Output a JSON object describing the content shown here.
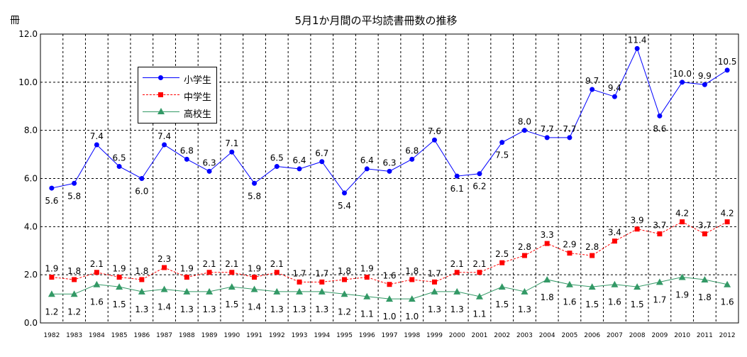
{
  "chart_data": {
    "type": "line",
    "title": "5月1か月間の平均読書冊数の推移",
    "ylabel": "冊",
    "xlabel": "",
    "ylim": [
      0,
      12
    ],
    "yticks": [
      "0.0",
      "2.0",
      "4.0",
      "6.0",
      "8.0",
      "10.0",
      "12.0"
    ],
    "grid": true,
    "legend_position": "upper-left",
    "categories": [
      "1982",
      "1983",
      "1984",
      "1985",
      "1986",
      "1987",
      "1988",
      "1989",
      "1990",
      "1991",
      "1992",
      "1993",
      "1994",
      "1995",
      "1996",
      "1997",
      "1998",
      "1999",
      "2000",
      "2001",
      "2002",
      "2003",
      "2004",
      "2005",
      "2006",
      "2007",
      "2008",
      "2009",
      "2010",
      "2011",
      "2012"
    ],
    "series": [
      {
        "name": "小学生",
        "color": "#0000ff",
        "marker": "circle",
        "line": "solid",
        "values": [
          5.6,
          5.8,
          7.4,
          6.5,
          6.0,
          7.4,
          6.8,
          6.3,
          7.1,
          5.8,
          6.5,
          6.4,
          6.7,
          5.4,
          6.4,
          6.3,
          6.8,
          7.6,
          6.1,
          6.2,
          7.5,
          8.0,
          7.7,
          7.7,
          9.7,
          9.4,
          11.4,
          8.6,
          10.0,
          9.9,
          10.5
        ],
        "labels": [
          "5.6",
          "5.8",
          "7.4",
          "6.5",
          "6.0",
          "7.4",
          "6.8",
          "6.3",
          "7.1",
          "5.8",
          "6.5",
          "6.4",
          "6.7",
          "5.4",
          "6.4",
          "6.3",
          "6.8",
          "7.6",
          "6.1",
          "6.2",
          "7.5",
          "8.0",
          "7.7",
          "7.7",
          "9.7",
          "9.4",
          "11.4",
          "8.6",
          "10.0",
          "9.9",
          "10.5"
        ],
        "label_side": [
          "below",
          "below",
          "above",
          "above",
          "below",
          "above",
          "above",
          "above",
          "above",
          "below",
          "above",
          "above",
          "above",
          "below",
          "above",
          "above",
          "above",
          "above",
          "below",
          "below",
          "below",
          "above",
          "above",
          "above",
          "above",
          "above",
          "above",
          "below",
          "above",
          "above",
          "above"
        ]
      },
      {
        "name": "中学生",
        "color": "#ff0000",
        "marker": "square",
        "line": "dashed",
        "values": [
          1.9,
          1.8,
          2.1,
          1.9,
          1.8,
          2.3,
          1.9,
          2.1,
          2.1,
          1.9,
          2.1,
          1.7,
          1.7,
          1.8,
          1.9,
          1.6,
          1.8,
          1.7,
          2.1,
          2.1,
          2.5,
          2.8,
          3.3,
          2.9,
          2.8,
          3.4,
          3.9,
          3.7,
          4.2,
          3.7,
          4.2
        ],
        "labels": [
          "1.9",
          "1.8",
          "2.1",
          "1.9",
          "1.8",
          "2.3",
          "1.9",
          "2.1",
          "2.1",
          "1.9",
          "2.1",
          "1.7",
          "1.7",
          "1.8",
          "1.9",
          "1.6",
          "1.8",
          "1.7",
          "2.1",
          "2.1",
          "2.5",
          "2.8",
          "3.3",
          "2.9",
          "2.8",
          "3.4",
          "3.9",
          "3.7",
          "4.2",
          "3.7",
          "4.2"
        ]
      },
      {
        "name": "高校生",
        "color": "#339966",
        "marker": "triangle",
        "line": "solid",
        "values": [
          1.2,
          1.2,
          1.6,
          1.5,
          1.3,
          1.4,
          1.3,
          1.3,
          1.5,
          1.4,
          1.3,
          1.3,
          1.3,
          1.2,
          1.1,
          1.0,
          1.0,
          1.3,
          1.3,
          1.1,
          1.5,
          1.3,
          1.8,
          1.6,
          1.5,
          1.6,
          1.5,
          1.7,
          1.9,
          1.8,
          1.6
        ],
        "labels": [
          "1.2",
          "1.2",
          "1.6",
          "1.5",
          "1.3",
          "1.4",
          "1.3",
          "1.3",
          "1.5",
          "1.4",
          "1.3",
          "1.3",
          "1.3",
          "1.2",
          "1.1",
          "1.0",
          "1.0",
          "1.3",
          "1.3",
          "1.1",
          "1.5",
          "1.3",
          "1.8",
          "1.6",
          "1.5",
          "1.6",
          "1.5",
          "1.7",
          "1.9",
          "1.8",
          "1.6"
        ]
      }
    ]
  }
}
